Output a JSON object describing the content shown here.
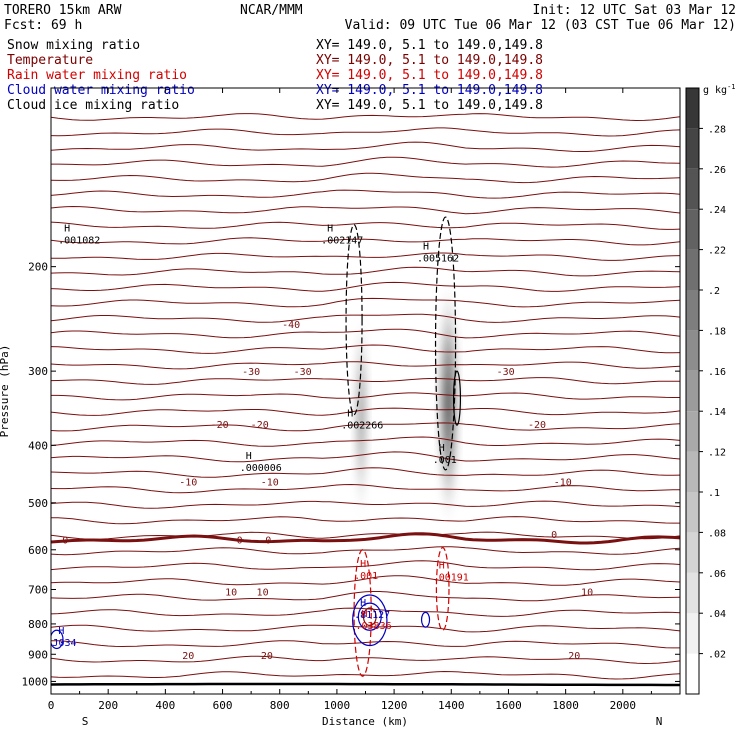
{
  "header": {
    "model": "TORERO  15km ARW",
    "org": "NCAR/MMM",
    "init": "Init: 12 UTC Sat 03 Mar 12",
    "fcst": "Fcst:   69 h",
    "valid": "Valid: 09 UTC Tue 06 Mar 12 (03 CST Tue 06 Mar 12)",
    "fields": [
      {
        "name": "Snow mixing ratio",
        "color": "#000000",
        "xy": "XY= 149.0,  5.1 to 149.0,149.8"
      },
      {
        "name": "Temperature",
        "color": "#7a0000",
        "xy": "XY= 149.0,  5.1 to 149.0,149.8"
      },
      {
        "name": "Rain water mixing ratio",
        "color": "#d40000",
        "xy": "XY= 149.0,  5.1 to 149.0,149.8"
      },
      {
        "name": "Cloud water mixing ratio",
        "color": "#0000c0",
        "xy": "XY= 149.0,  5.1 to 149.0,149.8"
      },
      {
        "name": "Cloud ice mixing ratio",
        "color": "#000000",
        "xy": "XY= 149.0,  5.1 to 149.0,149.8"
      }
    ]
  },
  "chart_data": {
    "type": "contour",
    "xlabel": "Distance (km)",
    "ylabel": "Pressure (hPa)",
    "xlim": [
      0,
      2200
    ],
    "ylim": [
      1050,
      100
    ],
    "y_scale": "log",
    "x_ticks": [
      0,
      200,
      400,
      600,
      800,
      1000,
      1200,
      1400,
      1600,
      1800,
      2000
    ],
    "y_ticks": [
      200,
      300,
      400,
      500,
      600,
      700,
      800,
      900,
      1000
    ],
    "x_end_labels": {
      "left": "S",
      "right": "N"
    },
    "colorbar": {
      "unit": "g kg",
      "unit_exponent": "-1",
      "ticks": [
        ".02",
        ".04",
        ".06",
        ".08",
        ".1",
        ".12",
        ".14",
        ".16",
        ".18",
        ".2",
        ".22",
        ".24",
        ".26",
        ".28"
      ],
      "min": 0,
      "max": 0.3
    },
    "temperature_labels": [
      {
        "text": "-40",
        "x": 840,
        "p": 250
      },
      {
        "text": "-30",
        "x": 700,
        "p": 300
      },
      {
        "text": "-30",
        "x": 880,
        "p": 300
      },
      {
        "text": "-30",
        "x": 1590,
        "p": 300
      },
      {
        "text": "-20",
        "x": 590,
        "p": 368
      },
      {
        "text": "-20",
        "x": 730,
        "p": 368
      },
      {
        "text": "-20",
        "x": 1700,
        "p": 368
      },
      {
        "text": "-10",
        "x": 480,
        "p": 460
      },
      {
        "text": "-10",
        "x": 765,
        "p": 460
      },
      {
        "text": "-10",
        "x": 1790,
        "p": 460
      },
      {
        "text": "0",
        "x": 50,
        "p": 577
      },
      {
        "text": "0",
        "x": 660,
        "p": 577
      },
      {
        "text": "0",
        "x": 760,
        "p": 577
      },
      {
        "text": "0",
        "x": 1760,
        "p": 564
      },
      {
        "text": "10",
        "x": 630,
        "p": 705
      },
      {
        "text": "10",
        "x": 740,
        "p": 705
      },
      {
        "text": "10",
        "x": 1875,
        "p": 705
      },
      {
        "text": "20",
        "x": 480,
        "p": 902
      },
      {
        "text": "20",
        "x": 755,
        "p": 902
      },
      {
        "text": "20",
        "x": 1830,
        "p": 902
      }
    ],
    "maxima_labels": [
      {
        "text": ".001082",
        "x": 25,
        "p": 180,
        "color": "#000000"
      },
      {
        "text": ".002147",
        "x": 945,
        "p": 180,
        "color": "#000000"
      },
      {
        "text": ".005162",
        "x": 1280,
        "p": 193,
        "color": "#000000"
      },
      {
        "text": ".002266",
        "x": 1015,
        "p": 369,
        "color": "#000000"
      },
      {
        "text": ".000006",
        "x": 660,
        "p": 435,
        "color": "#000000"
      },
      {
        "text": ".001",
        "x": 1335,
        "p": 422,
        "color": "#000000"
      },
      {
        "text": ".001",
        "x": 1060,
        "p": 662,
        "color": "#d40000"
      },
      {
        "text": ".00191",
        "x": 1335,
        "p": 666,
        "color": "#d40000"
      },
      {
        "text": ".81127",
        "x": 1060,
        "p": 770,
        "color": "#0000c0"
      },
      {
        "text": ".03836",
        "x": 1065,
        "p": 803,
        "color": "#d40000"
      },
      {
        "text": "J034",
        "x": 5,
        "p": 858,
        "color": "#0000c0"
      }
    ],
    "shading": [
      {
        "field": "snow",
        "x_center": 1085,
        "x_halfwidth": 30,
        "p_top": 240,
        "p_bottom": 530,
        "peak": 0.14
      },
      {
        "field": "snow",
        "x_center": 1390,
        "x_halfwidth": 42,
        "p_top": 215,
        "p_bottom": 540,
        "peak": 0.26
      }
    ]
  }
}
